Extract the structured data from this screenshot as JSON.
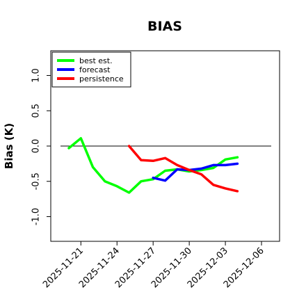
{
  "chart_data": {
    "type": "line",
    "title": "BIAS",
    "xlabel": "",
    "ylabel": "Bias (K)",
    "ylim": [
      -1.35,
      1.35
    ],
    "yticks": [
      -1.0,
      -0.5,
      0.0,
      0.5,
      1.0
    ],
    "ytick_labels": [
      "-1.0",
      "-0.5",
      "0.0",
      "0.5",
      "1.0"
    ],
    "xlim": [
      "2025-11-18 12:00",
      "2025-12-07 12:00"
    ],
    "xticks": [
      "2025-11-21",
      "2025-11-24",
      "2025-11-27",
      "2025-11-30",
      "2025-12-03",
      "2025-12-06"
    ],
    "xtick_labels": [
      "2025-11-21",
      "2025-11-24",
      "2025-11-27",
      "2025-11-30",
      "2025-12-03",
      "2025-12-06"
    ],
    "highlighted_xtick": "2025-11-27",
    "highlight_color": "#228b22",
    "zero_line": true,
    "grid": false,
    "legend_position": "top-left",
    "series": [
      {
        "name": "best est.",
        "color": "#00ff00",
        "x": [
          "2025-11-20",
          "2025-11-21",
          "2025-11-22",
          "2025-11-23",
          "2025-11-24",
          "2025-11-25",
          "2025-11-26",
          "2025-11-27",
          "2025-11-28",
          "2025-11-29",
          "2025-11-30",
          "2025-12-01",
          "2025-12-02",
          "2025-12-03",
          "2025-12-04"
        ],
        "values": [
          -0.03,
          0.11,
          -0.3,
          -0.5,
          -0.57,
          -0.66,
          -0.5,
          -0.47,
          -0.35,
          -0.33,
          -0.36,
          -0.34,
          -0.31,
          -0.19,
          -0.16
        ]
      },
      {
        "name": "forecast",
        "color": "#0000ff",
        "x": [
          "2025-11-27",
          "2025-11-28",
          "2025-11-29",
          "2025-11-30",
          "2025-12-01",
          "2025-12-02",
          "2025-12-03",
          "2025-12-04"
        ],
        "values": [
          -0.45,
          -0.49,
          -0.33,
          -0.34,
          -0.32,
          -0.27,
          -0.27,
          -0.25
        ]
      },
      {
        "name": "persistence",
        "color": "#ff0000",
        "x": [
          "2025-11-25",
          "2025-11-26",
          "2025-11-27",
          "2025-11-28",
          "2025-11-29",
          "2025-11-30",
          "2025-12-01",
          "2025-12-02",
          "2025-12-03",
          "2025-12-04"
        ],
        "values": [
          0.0,
          -0.2,
          -0.21,
          -0.17,
          -0.27,
          -0.34,
          -0.4,
          -0.55,
          -0.6,
          -0.64
        ]
      }
    ]
  }
}
